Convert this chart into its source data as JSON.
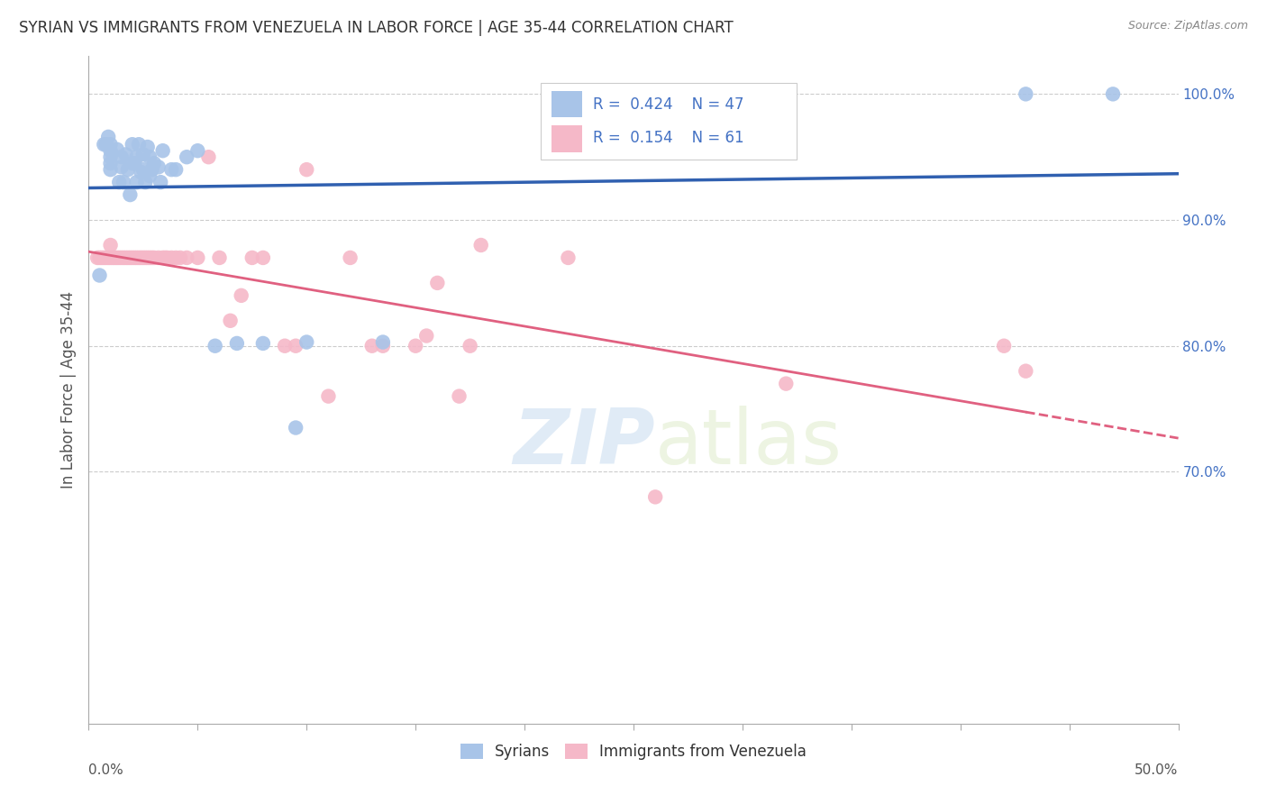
{
  "title": "SYRIAN VS IMMIGRANTS FROM VENEZUELA IN LABOR FORCE | AGE 35-44 CORRELATION CHART",
  "source": "Source: ZipAtlas.com",
  "ylabel": "In Labor Force | Age 35-44",
  "xlim": [
    0.0,
    0.5
  ],
  "ylim": [
    0.5,
    1.03
  ],
  "yticks_right": [
    0.7,
    0.8,
    0.9,
    1.0
  ],
  "ytick_labels_right": [
    "70.0%",
    "80.0%",
    "90.0%",
    "100.0%"
  ],
  "syrian_R": 0.424,
  "syrian_N": 47,
  "venezuela_R": 0.154,
  "venezuela_N": 61,
  "syrian_color": "#a8c4e8",
  "venezuela_color": "#f5b8c8",
  "syrian_line_color": "#3060b0",
  "venezuela_line_color": "#e06080",
  "watermark_zip": "ZIP",
  "watermark_atlas": "atlas",
  "background_color": "#ffffff",
  "grid_color": "#cccccc",
  "syrian_points_x": [
    0.005,
    0.007,
    0.008,
    0.009,
    0.01,
    0.01,
    0.01,
    0.01,
    0.01,
    0.013,
    0.014,
    0.015,
    0.015,
    0.016,
    0.017,
    0.018,
    0.019,
    0.02,
    0.02,
    0.021,
    0.022,
    0.022,
    0.023,
    0.024,
    0.025,
    0.025,
    0.026,
    0.027,
    0.028,
    0.028,
    0.029,
    0.03,
    0.032,
    0.033,
    0.034,
    0.038,
    0.04,
    0.045,
    0.05,
    0.058,
    0.068,
    0.08,
    0.095,
    0.1,
    0.135,
    0.43,
    0.47
  ],
  "syrian_points_y": [
    0.856,
    0.96,
    0.96,
    0.966,
    0.96,
    0.955,
    0.95,
    0.945,
    0.94,
    0.956,
    0.93,
    0.95,
    0.942,
    0.93,
    0.952,
    0.94,
    0.92,
    0.96,
    0.945,
    0.945,
    0.93,
    0.95,
    0.96,
    0.938,
    0.94,
    0.952,
    0.93,
    0.958,
    0.935,
    0.95,
    0.94,
    0.945,
    0.942,
    0.93,
    0.955,
    0.94,
    0.94,
    0.95,
    0.955,
    0.8,
    0.802,
    0.802,
    0.735,
    0.803,
    0.803,
    1.0,
    1.0
  ],
  "venezuela_points_x": [
    0.004,
    0.005,
    0.006,
    0.007,
    0.008,
    0.009,
    0.01,
    0.01,
    0.011,
    0.012,
    0.013,
    0.014,
    0.015,
    0.016,
    0.017,
    0.018,
    0.019,
    0.02,
    0.021,
    0.022,
    0.023,
    0.024,
    0.025,
    0.026,
    0.027,
    0.028,
    0.029,
    0.03,
    0.032,
    0.034,
    0.035,
    0.036,
    0.038,
    0.04,
    0.042,
    0.045,
    0.05,
    0.055,
    0.06,
    0.065,
    0.07,
    0.075,
    0.08,
    0.09,
    0.095,
    0.1,
    0.11,
    0.12,
    0.13,
    0.135,
    0.15,
    0.155,
    0.16,
    0.17,
    0.175,
    0.18,
    0.22,
    0.26,
    0.32,
    0.42,
    0.43
  ],
  "venezuela_points_y": [
    0.87,
    0.87,
    0.87,
    0.87,
    0.87,
    0.87,
    0.88,
    0.87,
    0.87,
    0.87,
    0.87,
    0.87,
    0.87,
    0.87,
    0.87,
    0.87,
    0.87,
    0.87,
    0.87,
    0.87,
    0.87,
    0.87,
    0.87,
    0.87,
    0.87,
    0.87,
    0.87,
    0.87,
    0.87,
    0.87,
    0.87,
    0.87,
    0.87,
    0.87,
    0.87,
    0.87,
    0.87,
    0.95,
    0.87,
    0.82,
    0.84,
    0.87,
    0.87,
    0.8,
    0.8,
    0.94,
    0.76,
    0.87,
    0.8,
    0.8,
    0.8,
    0.808,
    0.85,
    0.76,
    0.8,
    0.88,
    0.87,
    0.68,
    0.77,
    0.8,
    0.78
  ]
}
